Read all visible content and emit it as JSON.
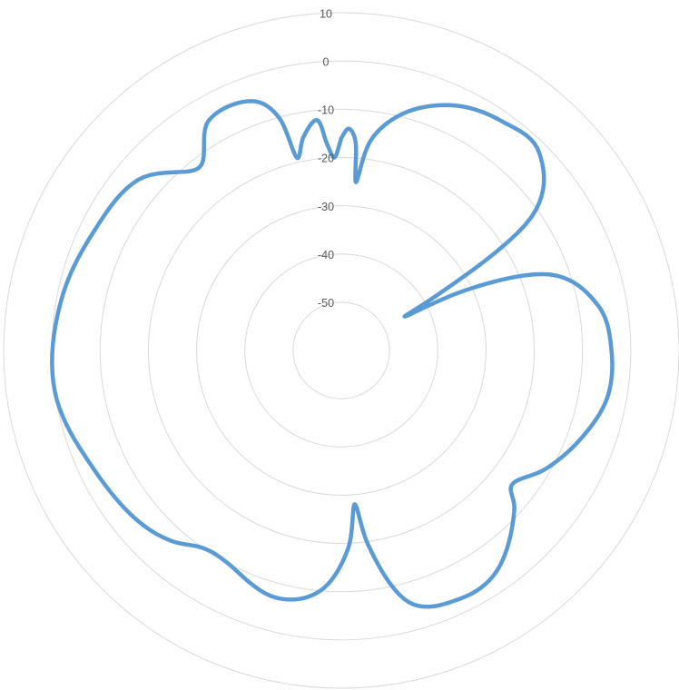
{
  "chart_data": {
    "type": "radar",
    "title": "",
    "r_axis": {
      "min": -60,
      "max": 10,
      "ticks": [
        10,
        0,
        -10,
        -20,
        -30,
        -40,
        -50
      ]
    },
    "grid": true,
    "legend": "none",
    "series": [
      {
        "color": "#5b9bd5",
        "points": [
          {
            "angle": 0,
            "value": -16
          },
          {
            "angle": 2,
            "value": -14
          },
          {
            "angle": 4,
            "value": -17
          },
          {
            "angle": 5,
            "value": -25
          },
          {
            "angle": 8,
            "value": -16
          },
          {
            "angle": 15,
            "value": -9
          },
          {
            "angle": 25,
            "value": -4
          },
          {
            "angle": 35,
            "value": -2
          },
          {
            "angle": 45,
            "value": -2
          },
          {
            "angle": 55,
            "value": -12
          },
          {
            "angle": 60,
            "value": -37
          },
          {
            "angle": 62,
            "value": -45
          },
          {
            "angle": 64,
            "value": -32
          },
          {
            "angle": 70,
            "value": -14
          },
          {
            "angle": 80,
            "value": -6
          },
          {
            "angle": 90,
            "value": -4
          },
          {
            "angle": 100,
            "value": -4
          },
          {
            "angle": 110,
            "value": -7
          },
          {
            "angle": 120,
            "value": -11
          },
          {
            "angle": 128,
            "value": -15
          },
          {
            "angle": 133,
            "value": -11
          },
          {
            "angle": 145,
            "value": -4
          },
          {
            "angle": 155,
            "value": -3
          },
          {
            "angle": 165,
            "value": -6
          },
          {
            "angle": 172,
            "value": -19
          },
          {
            "angle": 175,
            "value": -28
          },
          {
            "angle": 178,
            "value": -19
          },
          {
            "angle": 185,
            "value": -10
          },
          {
            "angle": 195,
            "value": -7
          },
          {
            "angle": 208,
            "value": -10
          },
          {
            "angle": 215,
            "value": -10
          },
          {
            "angle": 222,
            "value": -7
          },
          {
            "angle": 230,
            "value": -5
          },
          {
            "angle": 245,
            "value": -3
          },
          {
            "angle": 262,
            "value": 0
          },
          {
            "angle": 280,
            "value": -1
          },
          {
            "angle": 295,
            "value": -3
          },
          {
            "angle": 310,
            "value": -5
          },
          {
            "angle": 322,
            "value": -12
          },
          {
            "angle": 330,
            "value": -5
          },
          {
            "angle": 340,
            "value": -5
          },
          {
            "angle": 345,
            "value": -10
          },
          {
            "angle": 347,
            "value": -19
          },
          {
            "angle": 350,
            "value": -15
          },
          {
            "angle": 354,
            "value": -12
          },
          {
            "angle": 356,
            "value": -17
          },
          {
            "angle": 358,
            "value": -20
          },
          {
            "angle": 360,
            "value": -16
          }
        ]
      }
    ]
  }
}
